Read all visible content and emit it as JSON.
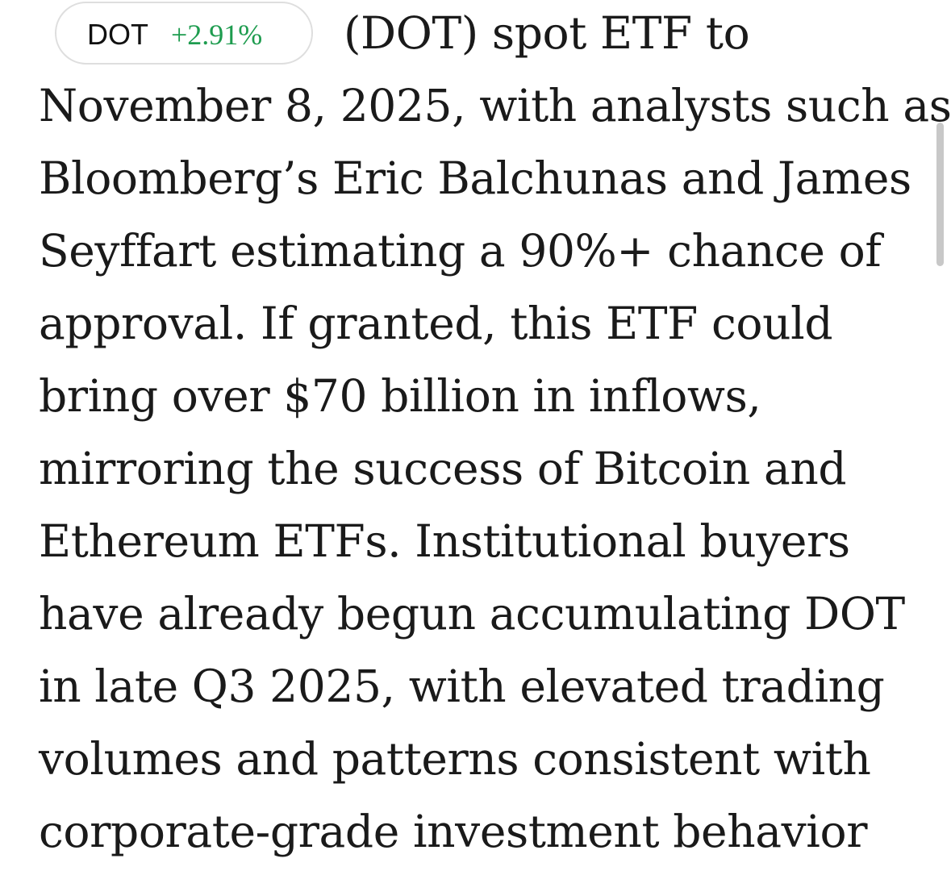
{
  "ticker": {
    "symbol": "DOT",
    "change": "+2.91%",
    "change_color": "#1e9c4f"
  },
  "article": {
    "lines": [
      "(DOT) spot ETF to",
      "November 8, 2025, with analysts such as",
      "Bloomberg’s Eric Balchunas and James",
      "Seyffart estimating a 90%+ chance of",
      "approval. If granted, this ETF could",
      "bring over $70 billion in inflows,",
      "mirroring the success of Bitcoin and",
      "Ethereum ETFs. Institutional buyers",
      "have already begun accumulating DOT",
      "in late Q3 2025, with elevated trading",
      "volumes and patterns consistent with",
      "corporate-grade investment behavior"
    ]
  }
}
